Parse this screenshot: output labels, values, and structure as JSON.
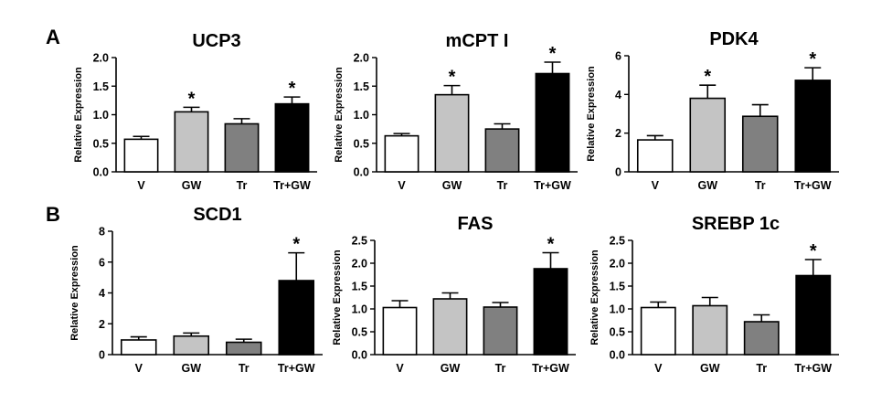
{
  "panels": [
    {
      "letter": "A"
    },
    {
      "letter": "B"
    }
  ],
  "chart_data": [
    {
      "type": "bar",
      "title": "UCP3",
      "ylabel": "Relative Expression",
      "categories": [
        "V",
        "GW",
        "Tr",
        "Tr+GW"
      ],
      "values": [
        0.57,
        1.05,
        0.84,
        1.19
      ],
      "errors": [
        0.05,
        0.08,
        0.09,
        0.12
      ],
      "significant": [
        false,
        true,
        false,
        true
      ],
      "ylim": [
        0,
        2.0
      ],
      "yticks": [
        "0.0",
        "0.5",
        "1.0",
        "1.5",
        "2.0"
      ],
      "star": "*"
    },
    {
      "type": "bar",
      "title": "mCPT I",
      "ylabel": "Relative Expression",
      "categories": [
        "V",
        "GW",
        "Tr",
        "Tr+GW"
      ],
      "values": [
        0.63,
        1.35,
        0.75,
        1.72
      ],
      "errors": [
        0.04,
        0.16,
        0.09,
        0.2
      ],
      "significant": [
        false,
        true,
        false,
        true
      ],
      "ylim": [
        0,
        2.0
      ],
      "yticks": [
        "0.0",
        "0.5",
        "1.0",
        "1.5",
        "2.0"
      ],
      "star": "*"
    },
    {
      "type": "bar",
      "title": "PDK4",
      "ylabel": "Relative Expression",
      "categories": [
        "V",
        "GW",
        "Tr",
        "Tr+GW"
      ],
      "values": [
        1.65,
        3.8,
        2.87,
        4.73
      ],
      "errors": [
        0.22,
        0.68,
        0.6,
        0.65
      ],
      "significant": [
        false,
        true,
        false,
        true
      ],
      "ylim": [
        0,
        6
      ],
      "yticks": [
        "0",
        "2",
        "4",
        "6"
      ],
      "star": "*"
    },
    {
      "type": "bar",
      "title": "SCD1",
      "ylabel": "Relative Expression",
      "categories": [
        "V",
        "GW",
        "Tr",
        "Tr+GW"
      ],
      "values": [
        0.95,
        1.2,
        0.8,
        4.8
      ],
      "errors": [
        0.2,
        0.2,
        0.2,
        1.8
      ],
      "significant": [
        false,
        false,
        false,
        true
      ],
      "ylim": [
        0,
        8
      ],
      "yticks": [
        "0",
        "2",
        "4",
        "6",
        "8"
      ],
      "star": "*"
    },
    {
      "type": "bar",
      "title": "FAS",
      "ylabel": "Relative Expression",
      "categories": [
        "V",
        "GW",
        "Tr",
        "Tr+GW"
      ],
      "values": [
        1.03,
        1.22,
        1.04,
        1.88
      ],
      "errors": [
        0.15,
        0.13,
        0.1,
        0.35
      ],
      "significant": [
        false,
        false,
        false,
        true
      ],
      "ylim": [
        0,
        2.5
      ],
      "yticks": [
        "0.0",
        "0.5",
        "1.0",
        "1.5",
        "2.0",
        "2.5"
      ],
      "star": "*"
    },
    {
      "type": "bar",
      "title": "SREBP 1c",
      "ylabel": "Relative Expression",
      "categories": [
        "V",
        "GW",
        "Tr",
        "Tr+GW"
      ],
      "values": [
        1.03,
        1.07,
        0.72,
        1.73
      ],
      "errors": [
        0.12,
        0.18,
        0.15,
        0.35
      ],
      "significant": [
        false,
        false,
        false,
        true
      ],
      "ylim": [
        0,
        2.5
      ],
      "yticks": [
        "0.0",
        "0.5",
        "1.0",
        "1.5",
        "2.0",
        "2.5"
      ],
      "star": "*"
    }
  ],
  "bar_colors": [
    "#ffffff",
    "#c4c4c4",
    "#808080",
    "#000000"
  ]
}
